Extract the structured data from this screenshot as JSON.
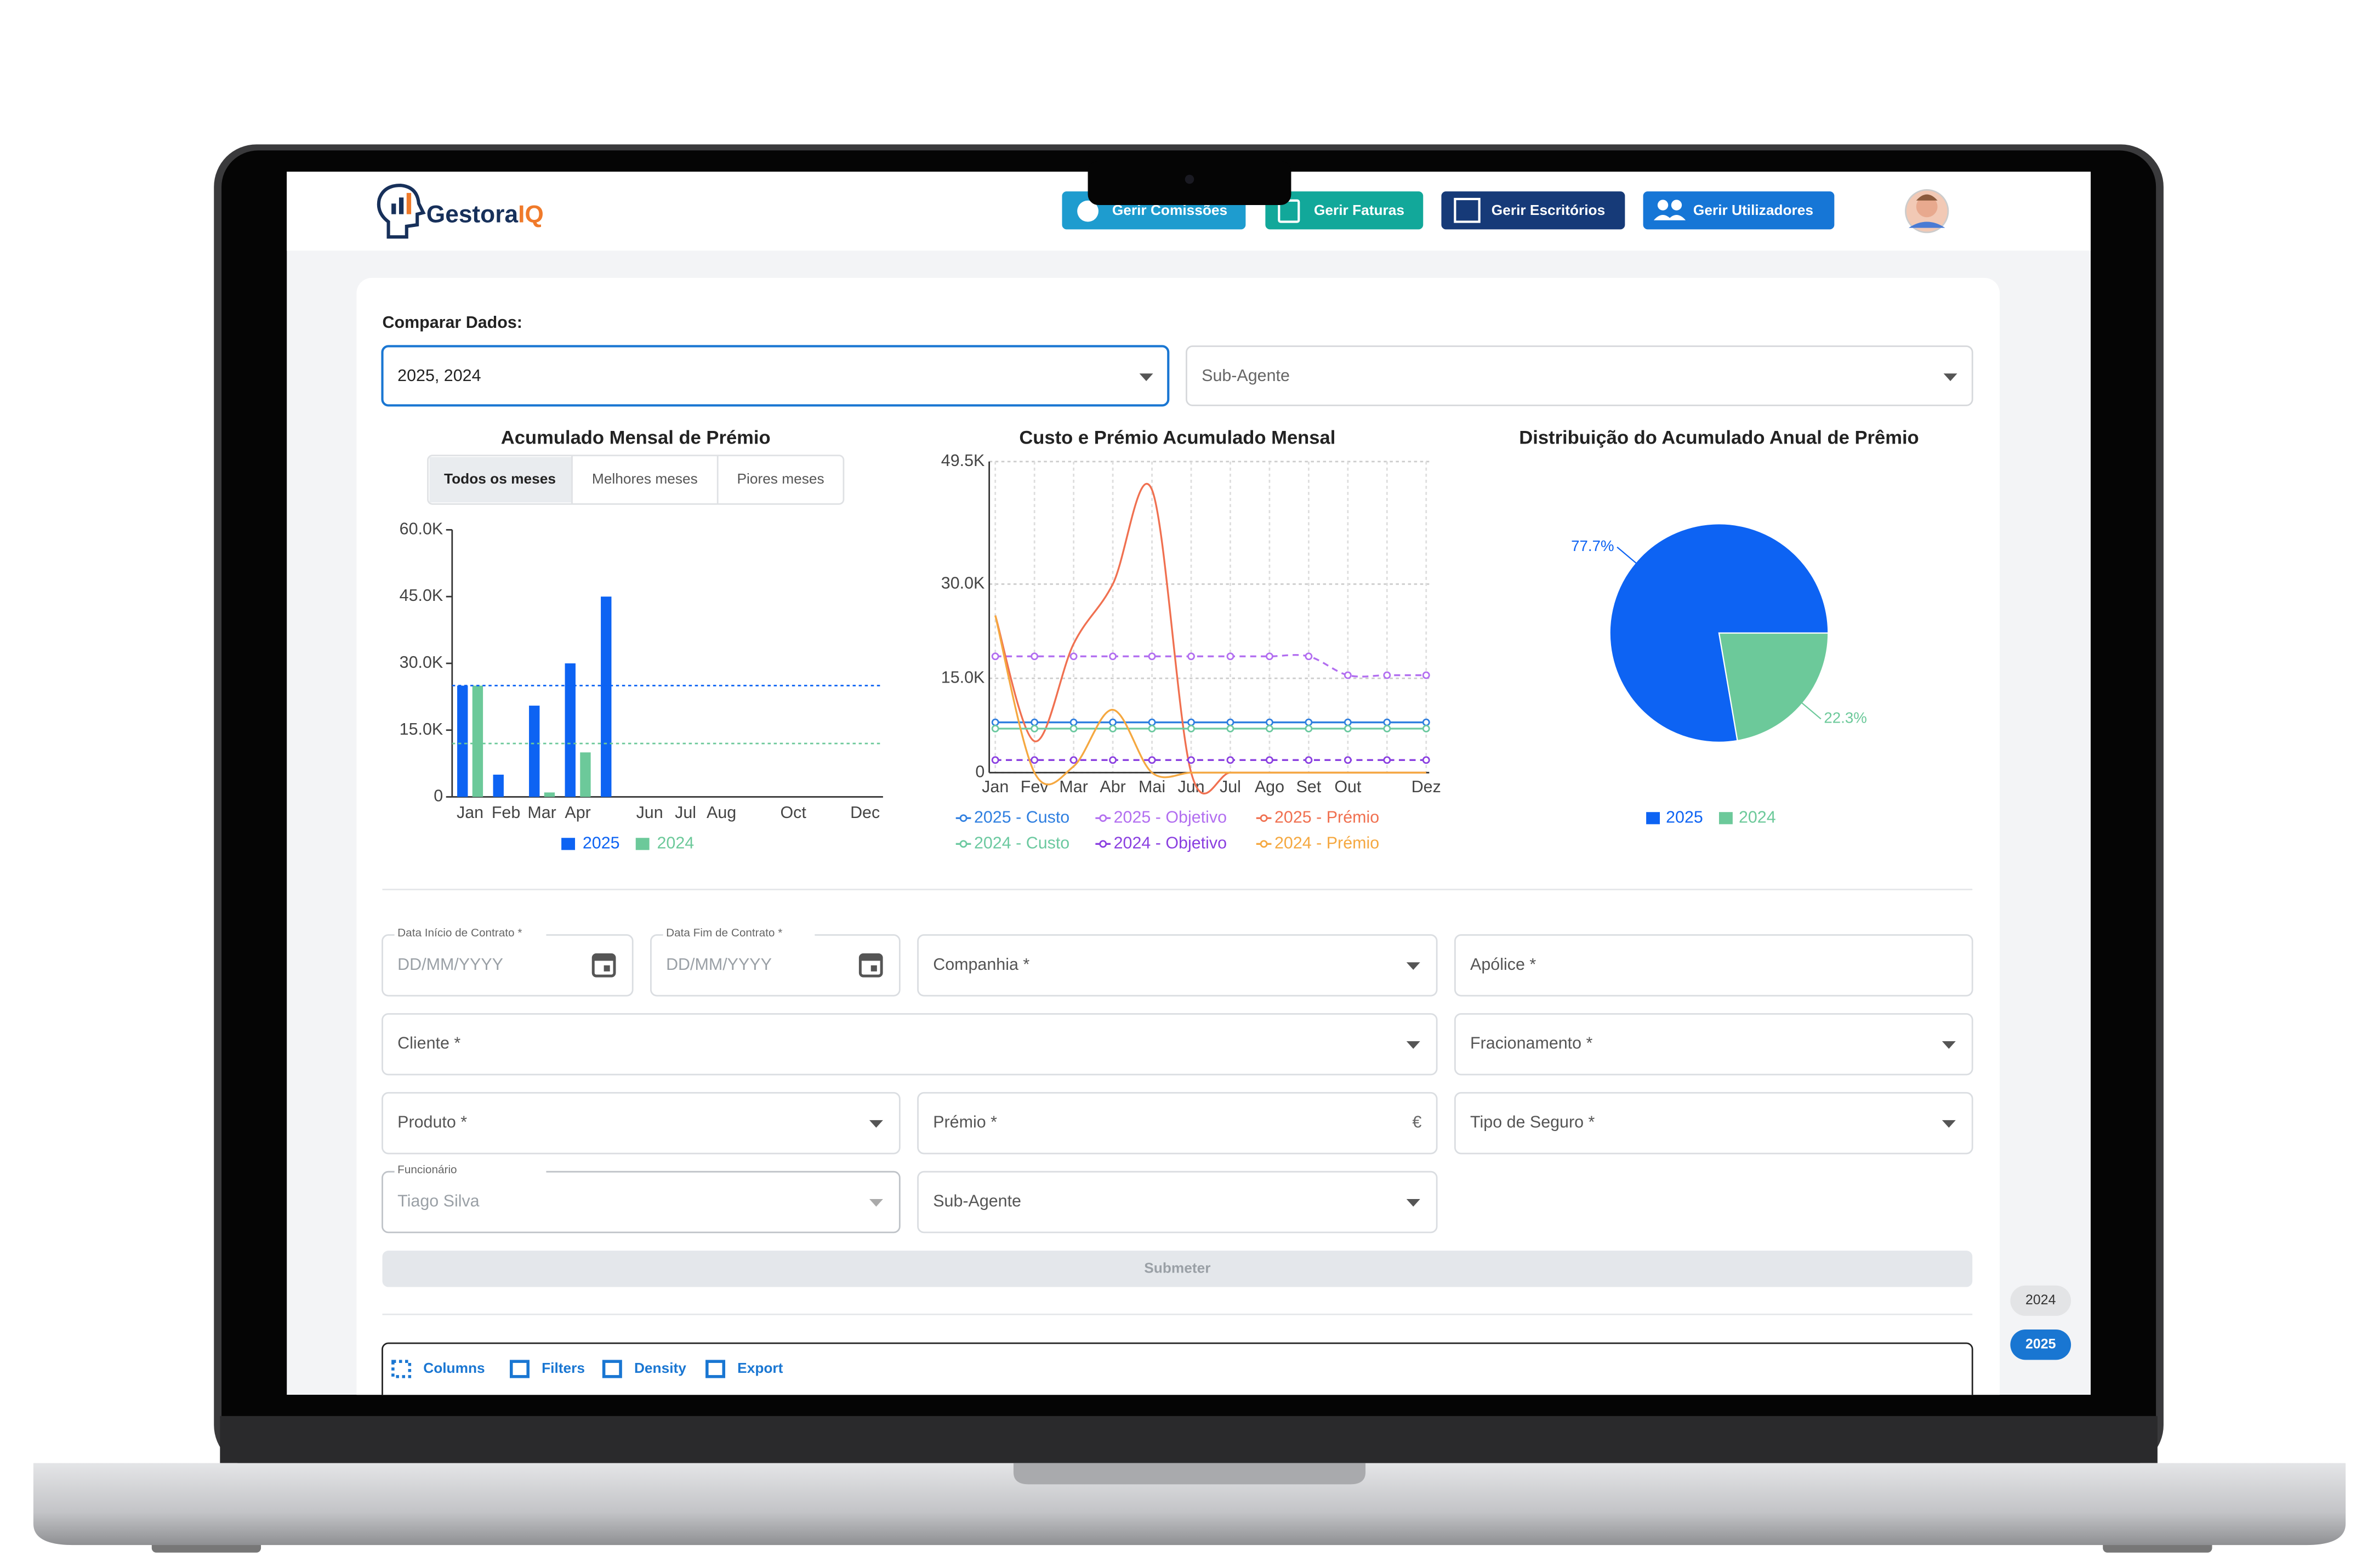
{
  "header": {
    "logo_text": "Gestora",
    "logo_accent": "IQ",
    "nav": [
      "Gerir Comissões",
      "Gerir Faturas",
      "Gerir Escritórios",
      "Gerir Utilizadores"
    ]
  },
  "compare": {
    "label": "Comparar Dados:",
    "years": "2025, 2024",
    "sub_agent": "Sub-Agente"
  },
  "chart_data": [
    {
      "type": "bar",
      "title": "Acumulado Mensal de Prémio",
      "tabs": [
        "Todos os meses",
        "Melhores meses",
        "Piores meses"
      ],
      "categories": [
        "Jan",
        "Feb",
        "Mar",
        "Apr",
        null,
        "Jun",
        "Jul",
        "Aug",
        null,
        "Oct",
        null,
        "Dec"
      ],
      "series": [
        {
          "name": "2025",
          "color": "#0d63f3",
          "values": [
            25000,
            5000,
            20500,
            30000,
            45000,
            null,
            null,
            null,
            null,
            null,
            null,
            null
          ]
        },
        {
          "name": "2024",
          "color": "#6cc99a",
          "values": [
            25000,
            0,
            1000,
            10000,
            0,
            null,
            null,
            null,
            null,
            null,
            null,
            null
          ]
        }
      ],
      "reference_lines": [
        {
          "color": "#0d63f3",
          "value": 25000
        },
        {
          "color": "#6cc99a",
          "value": 12000
        }
      ],
      "ylim": [
        0,
        60000
      ],
      "yticks": [
        0,
        {
          "value": 15000,
          "label": "15.0K"
        },
        {
          "value": 30000,
          "label": "30.0K"
        },
        {
          "value": 45000,
          "label": "45.0K"
        },
        {
          "value": 60000,
          "label": "60.0K"
        }
      ]
    },
    {
      "type": "line",
      "title": "Custo e Prémio Acumulado Mensal",
      "categories": [
        "Jan",
        "Fev",
        "Mar",
        "Abr",
        "Mai",
        "Jun",
        "Jul",
        "Ago",
        "Set",
        "Out",
        null,
        "Dez"
      ],
      "series": [
        {
          "name": "2025 - Custo",
          "color": "#2f7fe0",
          "style": "solid",
          "values": [
            8000,
            8000,
            8000,
            8000,
            8000,
            8000,
            8000,
            8000,
            8000,
            8000,
            8000,
            8000
          ]
        },
        {
          "name": "2025 - Objetivo",
          "color": "#b26ef0",
          "style": "dashed",
          "values": [
            18500,
            18500,
            18500,
            18500,
            18500,
            18500,
            18500,
            18500,
            18500,
            15500,
            15500,
            15500
          ]
        },
        {
          "name": "2025 - Prémio",
          "color": "#f07050",
          "style": "solid",
          "values": [
            25000,
            5000,
            20500,
            30000,
            45000,
            0,
            0,
            0,
            0,
            0,
            0,
            0
          ]
        },
        {
          "name": "2024 - Custo",
          "color": "#6cc9a0",
          "style": "solid",
          "values": [
            7000,
            7000,
            7000,
            7000,
            7000,
            7000,
            7000,
            7000,
            7000,
            7000,
            7000,
            7000
          ]
        },
        {
          "name": "2024 - Objetivo",
          "color": "#8a3fe0",
          "style": "dashed",
          "values": [
            2000,
            2000,
            2000,
            2000,
            2000,
            2000,
            2000,
            2000,
            2000,
            2000,
            2000,
            2000
          ]
        },
        {
          "name": "2024 - Prémio",
          "color": "#f5a840",
          "style": "solid",
          "values": [
            25000,
            0,
            1000,
            10000,
            0,
            0,
            0,
            0,
            0,
            0,
            0,
            0
          ]
        }
      ],
      "ylim": [
        0,
        49500
      ],
      "yticks": [
        0,
        {
          "value": 15000,
          "label": "15.0K"
        },
        {
          "value": 30000,
          "label": "30.0K"
        },
        {
          "value": 49500,
          "label": "49.5K"
        }
      ],
      "grid": true
    },
    {
      "type": "pie",
      "title": "Distribuição do Acumulado Anual de Prêmio",
      "categories": [
        "2025",
        "2024"
      ],
      "values": [
        77.7,
        22.3
      ],
      "value_labels": [
        "77.7%",
        "22.3%"
      ],
      "colors": [
        "#0d63f3",
        "#6cc99a"
      ]
    }
  ],
  "form": {
    "fields": [
      {
        "label": "Data Início de Contrato *",
        "placeholder": "DD/MM/YYYY"
      },
      {
        "label": "Data Fim de Contrato *",
        "placeholder": "DD/MM/YYYY"
      },
      {
        "label": "Companhia *"
      },
      {
        "label": "Apólice *"
      },
      {
        "label": "Cliente *"
      },
      {
        "label": "Fracionamento *"
      },
      {
        "label": "Produto *"
      },
      {
        "label": "Prémio *",
        "suffix": "€"
      },
      {
        "label": "Tipo de Seguro *"
      },
      {
        "label": "Funcionário",
        "value": "Tiago Silva"
      },
      {
        "label": "Sub-Agente"
      }
    ],
    "submit": "Submeter"
  },
  "toolbar": [
    "Columns",
    "Filters",
    "Density",
    "Export"
  ],
  "year_chips": [
    "2024",
    "2025"
  ]
}
